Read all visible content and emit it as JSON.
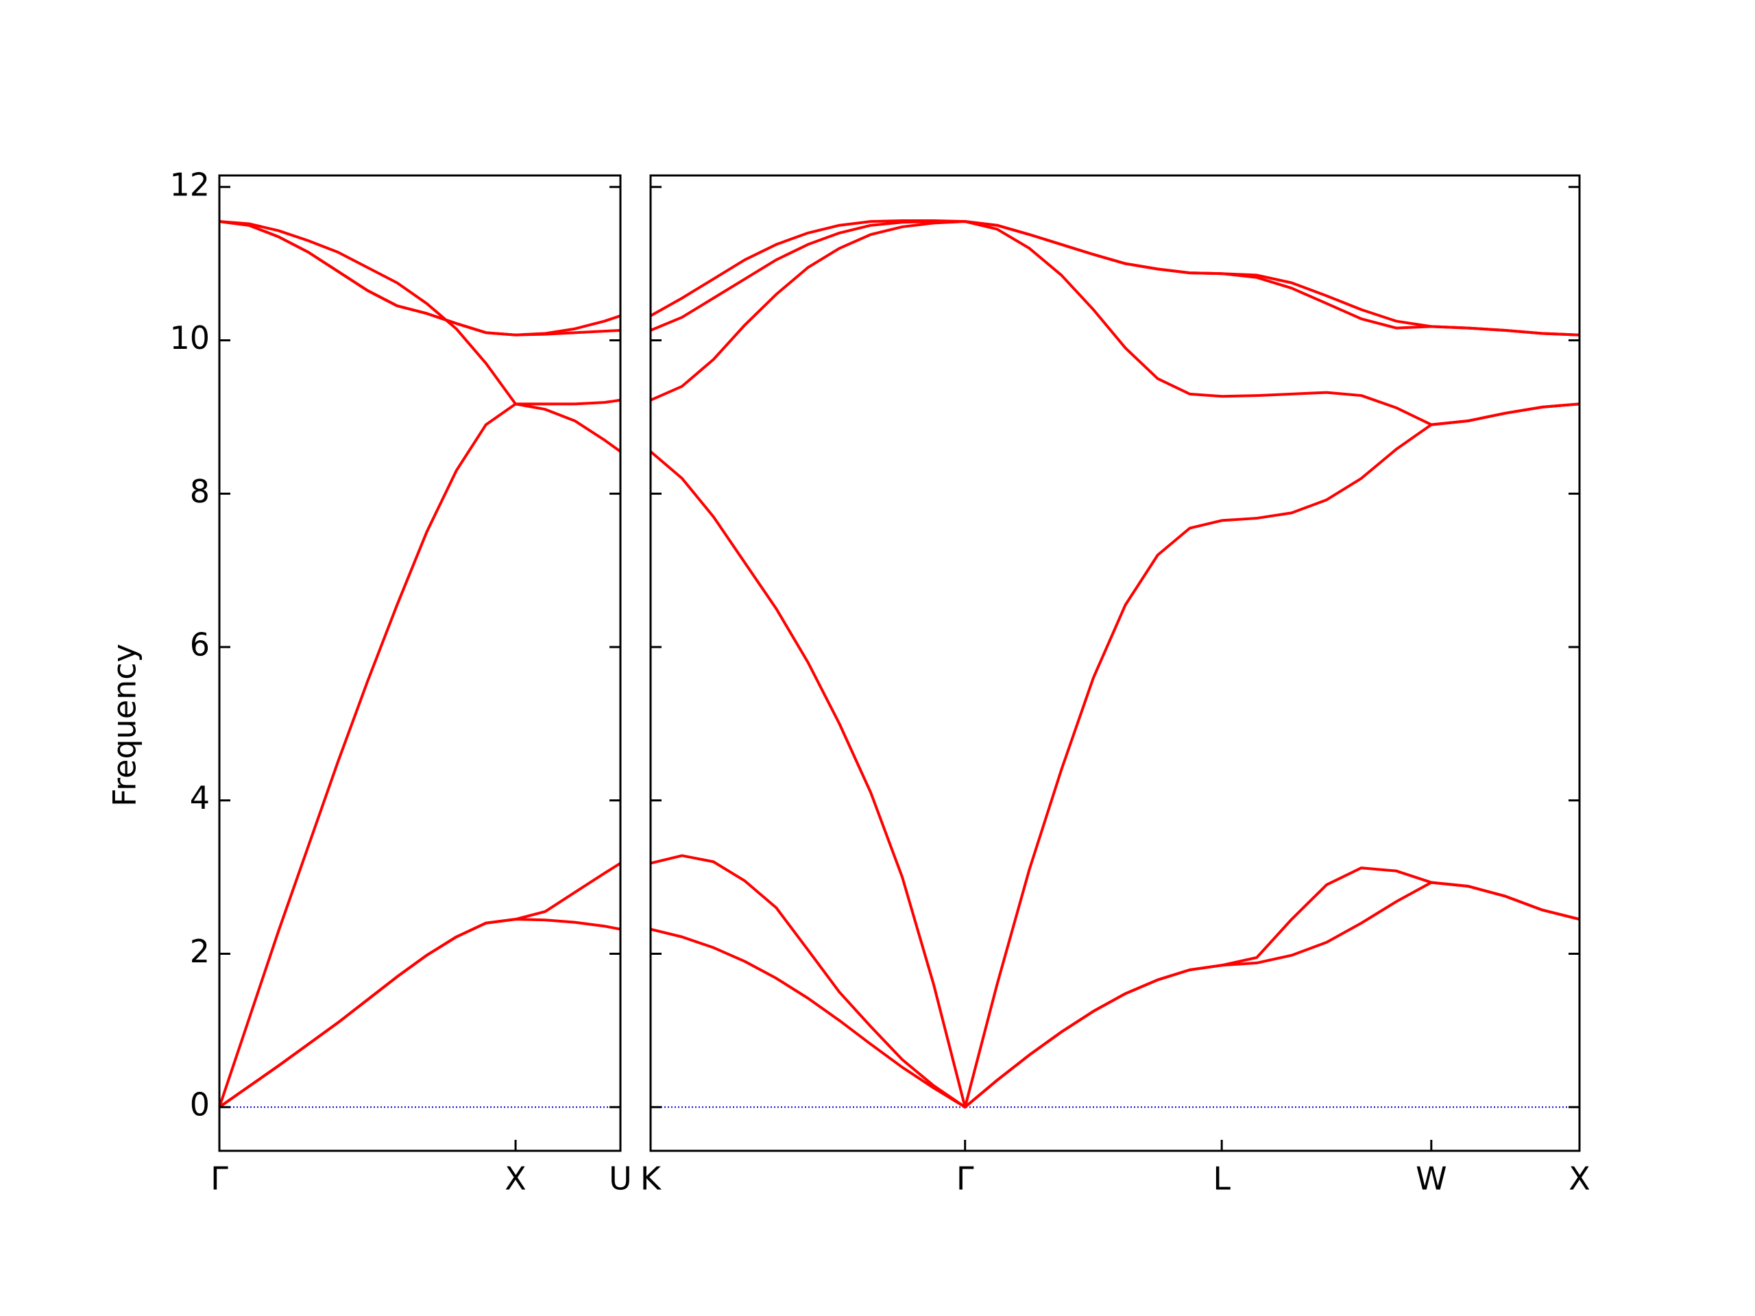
{
  "chart_data": [
    {
      "type": "line",
      "ylabel": "Frequency",
      "color": "#ff0000",
      "hline": 0,
      "hline_color": "#0000cc",
      "show_ytick_labels": true,
      "xlim": [
        0,
        1.354
      ],
      "ylim": [
        -0.57,
        12.15
      ],
      "xticks": [
        {
          "value": 0,
          "label": "Γ"
        },
        {
          "value": 1,
          "label": "X"
        },
        {
          "value": 1.354,
          "label": "U"
        }
      ],
      "yticks": [
        0,
        2,
        4,
        6,
        8,
        10,
        12
      ],
      "x": [
        0,
        0.1,
        0.2,
        0.3,
        0.4,
        0.5,
        0.6,
        0.7,
        0.8,
        0.9,
        1,
        1.1,
        1.2,
        1.3,
        1.354
      ],
      "series": [
        {
          "values": [
            0,
            0.27,
            0.54,
            0.82,
            1.1,
            1.4,
            1.7,
            1.98,
            2.22,
            2.4,
            2.45,
            2.44,
            2.41,
            2.36,
            2.32
          ]
        },
        {
          "values": [
            0,
            0.27,
            0.54,
            0.82,
            1.1,
            1.4,
            1.7,
            1.98,
            2.22,
            2.4,
            2.45,
            2.55,
            2.8,
            3.05,
            3.18
          ]
        },
        {
          "values": [
            0,
            1.15,
            2.3,
            3.4,
            4.5,
            5.55,
            6.55,
            7.5,
            8.3,
            8.9,
            9.17,
            9.1,
            8.95,
            8.7,
            8.55
          ]
        },
        {
          "values": [
            11.55,
            11.52,
            11.43,
            11.3,
            11.15,
            10.95,
            10.75,
            10.48,
            10.15,
            9.7,
            9.17,
            9.17,
            9.17,
            9.19,
            9.22
          ]
        },
        {
          "values": [
            11.55,
            11.5,
            11.35,
            11.15,
            10.9,
            10.65,
            10.45,
            10.35,
            10.22,
            10.1,
            10.07,
            10.08,
            10.1,
            10.12,
            10.13
          ]
        },
        {
          "values": [
            11.55,
            11.5,
            11.35,
            11.15,
            10.9,
            10.65,
            10.45,
            10.35,
            10.22,
            10.1,
            10.07,
            10.09,
            10.15,
            10.25,
            10.32
          ]
        }
      ]
    },
    {
      "type": "line",
      "color": "#ff0000",
      "hline": 0,
      "hline_color": "#0000cc",
      "show_ytick_labels": false,
      "xlim": [
        0,
        3.134
      ],
      "ylim": [
        -0.57,
        12.15
      ],
      "xticks": [
        {
          "value": 0,
          "label": "K"
        },
        {
          "value": 1.061,
          "label": "Γ"
        },
        {
          "value": 1.927,
          "label": "L"
        },
        {
          "value": 2.634,
          "label": "W"
        },
        {
          "value": 3.134,
          "label": "X"
        }
      ],
      "yticks": [
        0,
        2,
        4,
        6,
        8,
        10,
        12
      ],
      "x": [
        0,
        0.106,
        0.212,
        0.318,
        0.424,
        0.531,
        0.637,
        0.743,
        0.849,
        0.955,
        1.061,
        1.169,
        1.278,
        1.386,
        1.494,
        1.602,
        1.711,
        1.819,
        1.927,
        2.045,
        2.163,
        2.281,
        2.398,
        2.516,
        2.634,
        2.759,
        2.884,
        3.009,
        3.134
      ],
      "series": [
        {
          "values": [
            2.32,
            2.22,
            2.08,
            1.9,
            1.68,
            1.42,
            1.13,
            0.82,
            0.52,
            0.25,
            0,
            0.35,
            0.68,
            0.98,
            1.25,
            1.48,
            1.66,
            1.79,
            1.85,
            1.88,
            1.98,
            2.15,
            2.4,
            2.68,
            2.93,
            2.88,
            2.75,
            2.57,
            2.45
          ]
        },
        {
          "values": [
            3.18,
            3.28,
            3.2,
            2.95,
            2.6,
            2.05,
            1.5,
            1.05,
            0.62,
            0.28,
            0,
            0.35,
            0.68,
            0.98,
            1.25,
            1.48,
            1.66,
            1.79,
            1.85,
            1.95,
            2.45,
            2.9,
            3.12,
            3.08,
            2.93,
            2.88,
            2.75,
            2.57,
            2.45
          ]
        },
        {
          "values": [
            8.55,
            8.2,
            7.7,
            7.1,
            6.5,
            5.8,
            5.0,
            4.1,
            3.0,
            1.6,
            0,
            1.6,
            3.1,
            4.4,
            5.6,
            6.55,
            7.2,
            7.55,
            7.65,
            7.68,
            7.75,
            7.92,
            8.2,
            8.58,
            8.9,
            8.95,
            9.05,
            9.13,
            9.17
          ]
        },
        {
          "values": [
            9.22,
            9.4,
            9.75,
            10.2,
            10.6,
            10.95,
            11.2,
            11.38,
            11.48,
            11.53,
            11.55,
            11.45,
            11.2,
            10.85,
            10.4,
            9.9,
            9.5,
            9.3,
            9.27,
            9.28,
            9.3,
            9.32,
            9.28,
            9.12,
            8.9,
            8.95,
            9.05,
            9.13,
            9.17
          ]
        },
        {
          "values": [
            10.13,
            10.3,
            10.55,
            10.8,
            11.05,
            11.25,
            11.4,
            11.5,
            11.54,
            11.55,
            11.55,
            11.5,
            11.38,
            11.25,
            11.12,
            11.0,
            10.93,
            10.88,
            10.87,
            10.82,
            10.68,
            10.48,
            10.28,
            10.16,
            10.18,
            10.16,
            10.13,
            10.09,
            10.07
          ]
        },
        {
          "values": [
            10.32,
            10.55,
            10.8,
            11.05,
            11.25,
            11.4,
            11.5,
            11.55,
            11.56,
            11.56,
            11.55,
            11.5,
            11.38,
            11.25,
            11.12,
            11.0,
            10.93,
            10.88,
            10.87,
            10.85,
            10.75,
            10.58,
            10.4,
            10.25,
            10.18,
            10.16,
            10.13,
            10.09,
            10.07
          ]
        }
      ]
    }
  ]
}
